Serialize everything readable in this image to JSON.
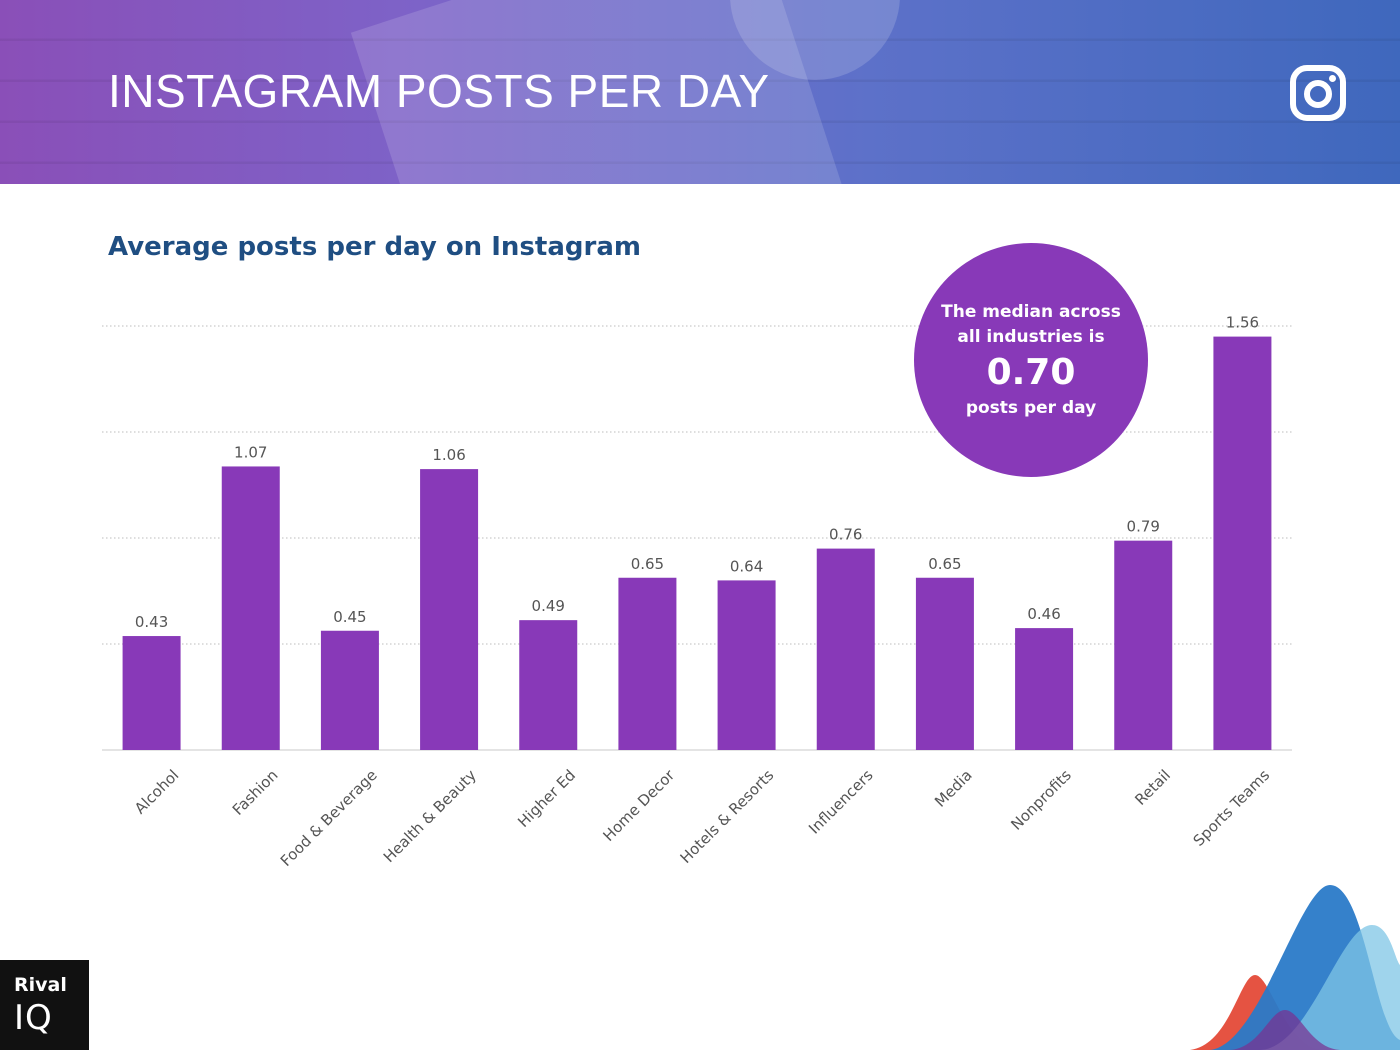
{
  "header": {
    "title": "INSTAGRAM POSTS PER DAY",
    "icon": "instagram-icon"
  },
  "median": {
    "text": "The median across all industries is",
    "value": "0.70",
    "unit": "posts per day",
    "color": "#8839b8"
  },
  "brand": {
    "line1": "Rival",
    "line2": "IQ"
  },
  "colors": {
    "bar": "#8839b8",
    "title": "#1f4e82"
  },
  "chart_data": {
    "type": "bar",
    "title": "Average posts per day on Instagram",
    "categories": [
      "Alcohol",
      "Fashion",
      "Food & Beverage",
      "Health & Beauty",
      "Higher Ed",
      "Home Decor",
      "Hotels & Resorts",
      "Influencers",
      "Media",
      "Nonprofits",
      "Retail",
      "Sports Teams"
    ],
    "values": [
      0.43,
      1.07,
      0.45,
      1.06,
      0.49,
      0.65,
      0.64,
      0.76,
      0.65,
      0.46,
      0.79,
      1.56
    ],
    "value_labels": [
      "0.43",
      "1.07",
      "0.45",
      "1.06",
      "0.49",
      "0.65",
      "0.64",
      "0.76",
      "0.65",
      "0.46",
      "0.79",
      "1.56"
    ],
    "ylim": [
      0,
      1.6
    ],
    "gridlines": [
      0.4,
      0.8,
      1.2,
      1.6
    ],
    "grid": true,
    "xlabel": "",
    "ylabel": ""
  }
}
